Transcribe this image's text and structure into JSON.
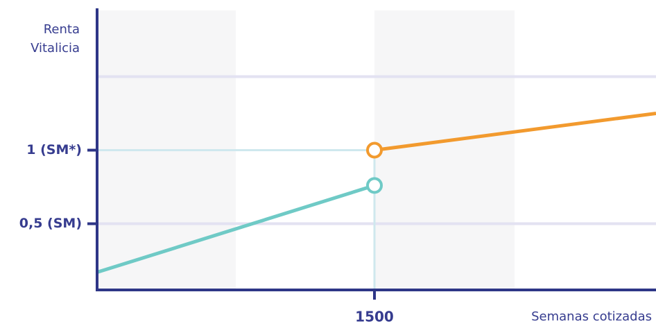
{
  "chart_data": {
    "type": "line",
    "y_label": [
      "Renta",
      "Vitalicia"
    ],
    "x_label": "Semanas cotizadas",
    "xlim": [
      500,
      2515
    ],
    "xticks": [
      1500
    ],
    "ylim": [
      0.05,
      1.95
    ],
    "yticks": [
      {
        "value": 0.5,
        "label": "0,5 (SM)"
      },
      {
        "value": 1,
        "label": "1 (SM*)"
      },
      {
        "value": 1.5,
        "label": null
      }
    ],
    "grid": true,
    "series": [
      {
        "color": "#6fcac6",
        "x": [
          500,
          1500
        ],
        "values": [
          0.17,
          0.76
        ]
      },
      {
        "color": "#f29a2e",
        "x": [
          1500,
          2515
        ],
        "values": [
          1,
          1.25
        ]
      }
    ]
  }
}
